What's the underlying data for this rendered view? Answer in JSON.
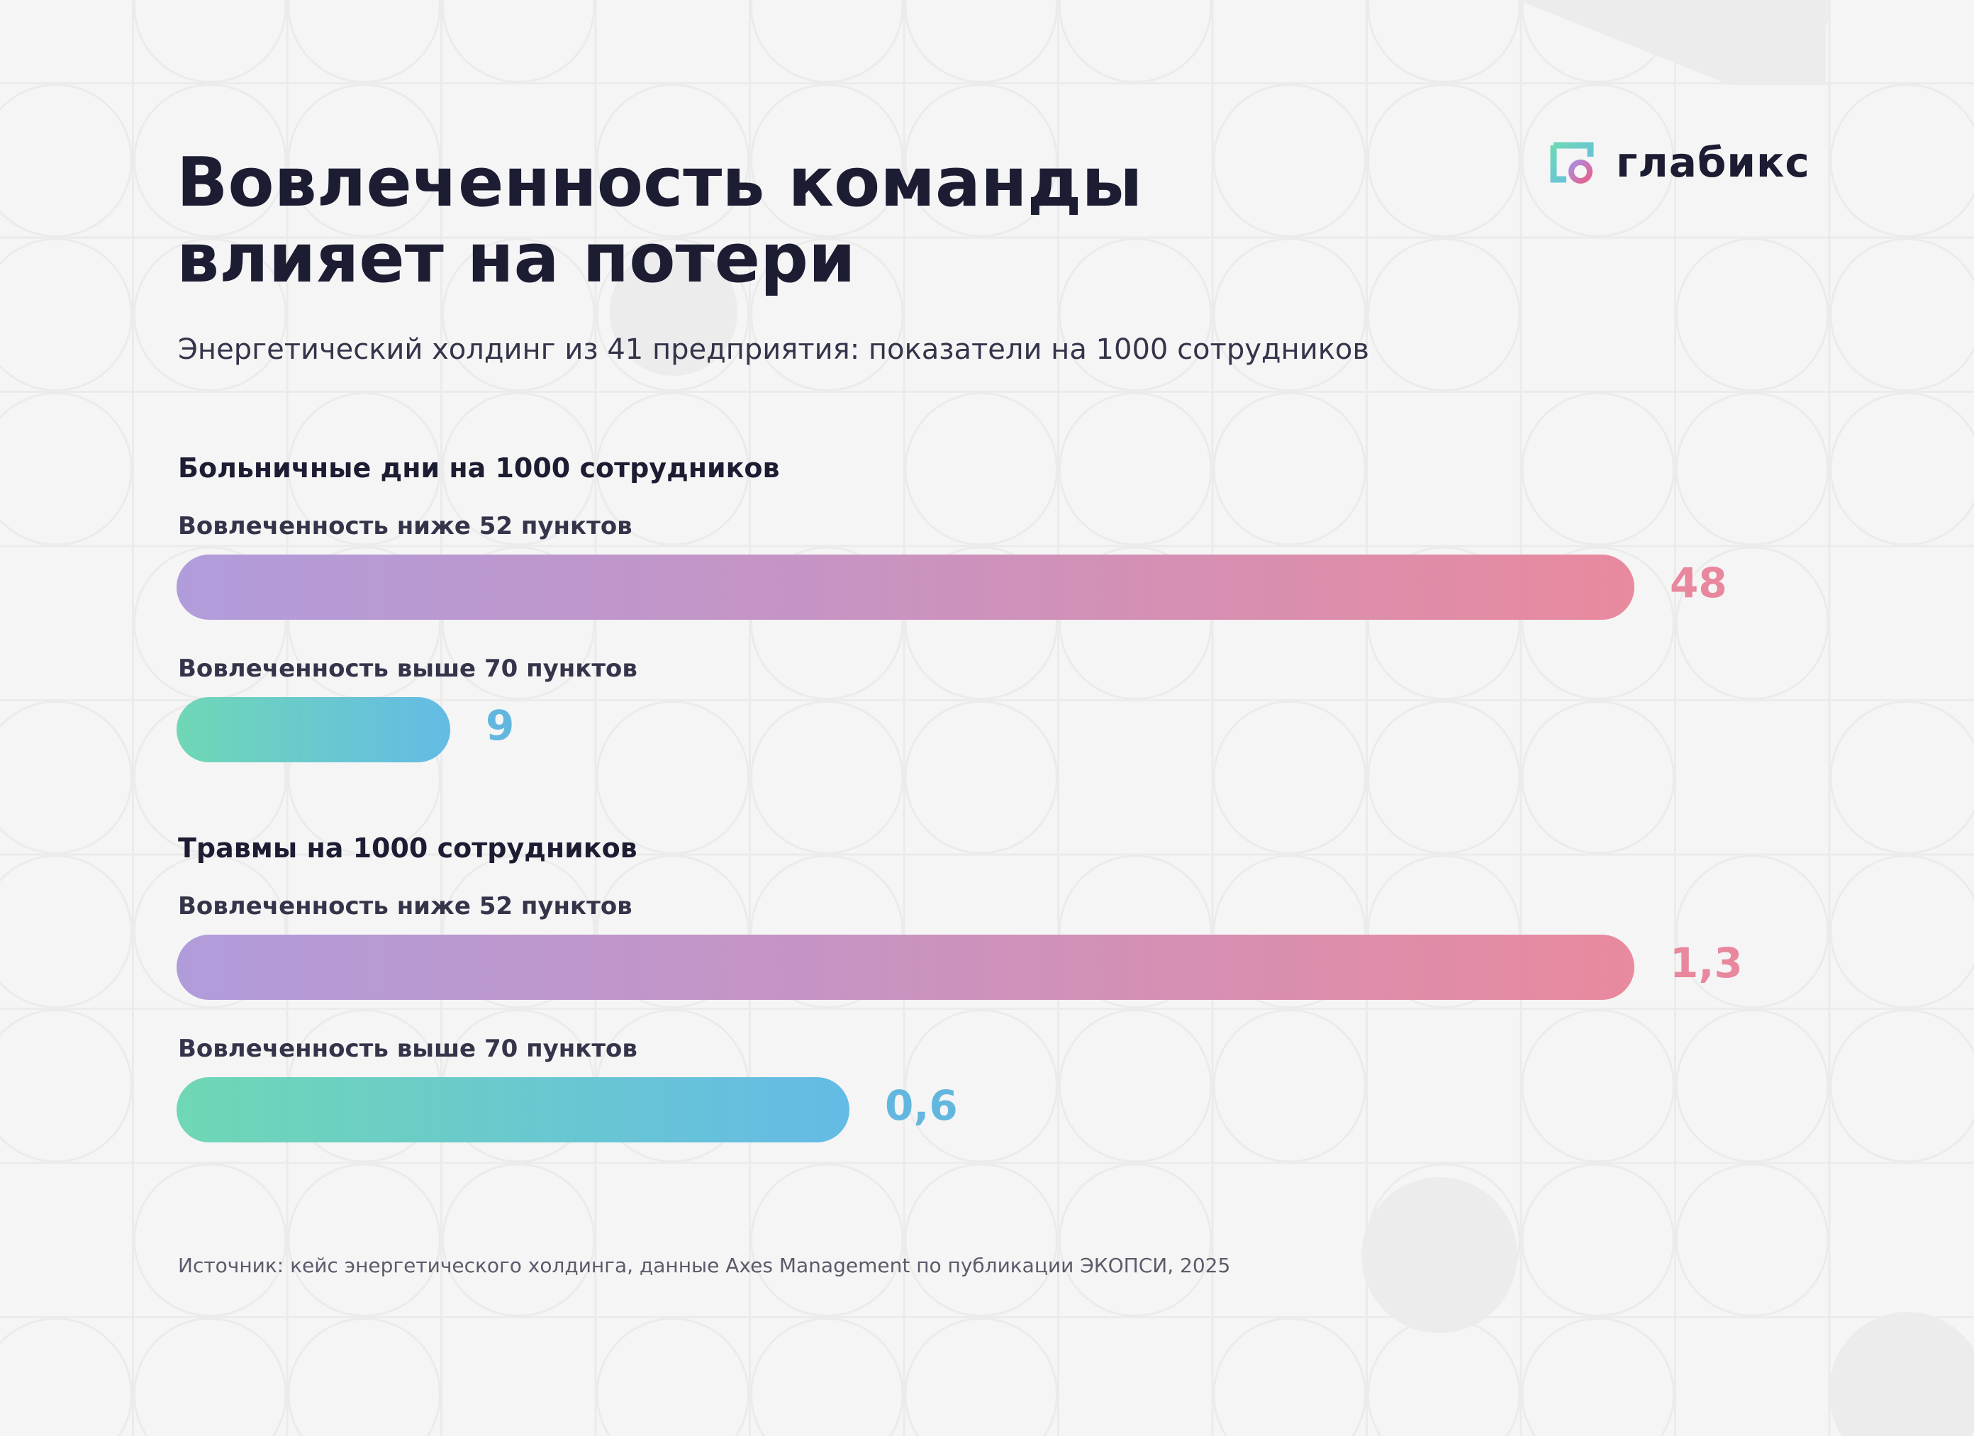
{
  "header": {
    "title_line1": "Вовлеченность команды",
    "title_line2": "влияет на потери",
    "subtitle": "Энергетический холдинг из 41 предприятия: показатели на 1000 сотрудников"
  },
  "logo": {
    "text": "глабикс",
    "icon": "glabiks-logo-icon"
  },
  "colors": {
    "background": "#f5f5f5",
    "text": "#1c1c33",
    "low_gradient": [
      "#b19cdb",
      "#e98a9e"
    ],
    "high_gradient": [
      "#6fd7b5",
      "#64bbe6"
    ],
    "low_value": "#e8879d",
    "high_value": "#63b7df"
  },
  "chart_data": [
    {
      "type": "bar",
      "orientation": "horizontal",
      "title": "Больничные дни на 1000 сотрудников",
      "categories": [
        "Вовлеченность ниже 52 пунктов",
        "Вовлеченность выше 70 пунктов"
      ],
      "values": [
        48,
        9
      ],
      "value_labels": [
        "48",
        "9"
      ],
      "xlim": [
        0,
        48
      ]
    },
    {
      "type": "bar",
      "orientation": "horizontal",
      "title": "Травмы на 1000 сотрудников",
      "categories": [
        "Вовлеченность ниже 52 пунктов",
        "Вовлеченность выше 70 пунктов"
      ],
      "values": [
        1.3,
        0.6
      ],
      "value_labels": [
        "1,3",
        "0,6"
      ],
      "xlim": [
        0,
        1.3
      ]
    }
  ],
  "source": "Источник: кейс энергетического холдинга, данные Axes Management по публикации ЭКОПСИ, 2025"
}
